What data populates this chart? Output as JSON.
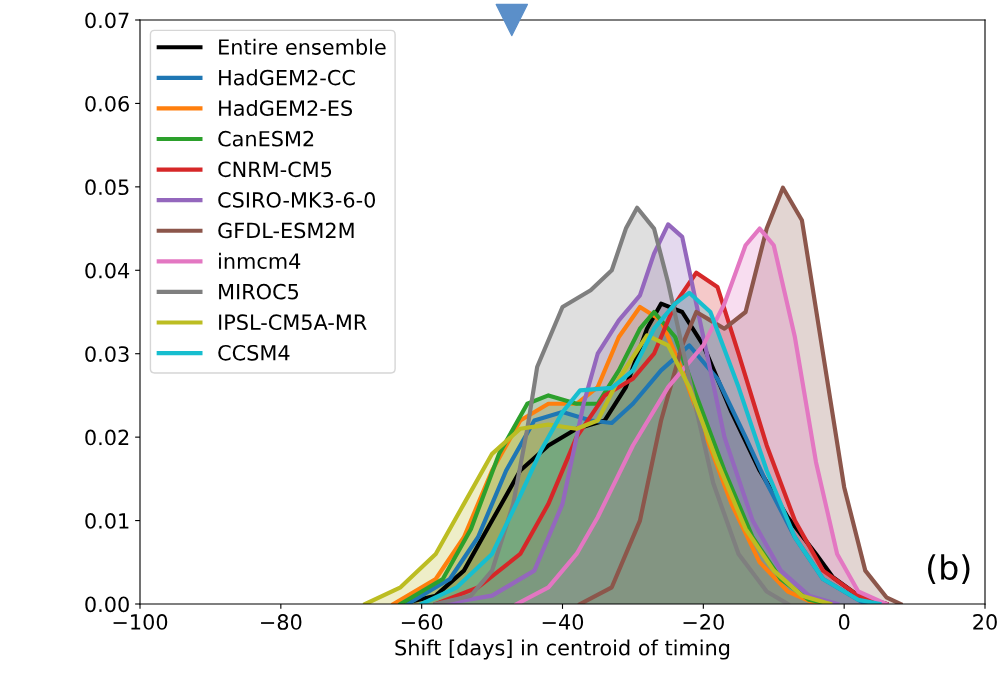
{
  "chart_data": {
    "type": "area",
    "xlabel": "Shift [days] in centroid of timing",
    "annotations": [
      "(b)"
    ],
    "xlim": [
      -100,
      20
    ],
    "xticks": [
      {
        "value": -100,
        "label": "−100"
      },
      {
        "value": -80,
        "label": "−80"
      },
      {
        "value": -60,
        "label": "−60"
      },
      {
        "value": -40,
        "label": "−40"
      },
      {
        "value": -20,
        "label": "−20"
      },
      0,
      20
    ],
    "ylim": [
      0,
      0.07
    ],
    "yticks": [
      {
        "value": 0,
        "label": "0.00"
      },
      {
        "value": 0.01,
        "label": "0.01"
      },
      {
        "value": 0.02,
        "label": "0.02"
      },
      {
        "value": 0.03,
        "label": "0.03"
      },
      {
        "value": 0.04,
        "label": "0.04"
      },
      {
        "value": 0.05,
        "label": "0.05"
      },
      {
        "value": 0.06,
        "label": "0.06"
      },
      {
        "value": 0.07,
        "label": "0.07"
      }
    ],
    "grid": false,
    "legend": "top left",
    "line_style": "solid",
    "marker": "none",
    "series": [
      {
        "name": "Entire ensemble",
        "color": "#000000",
        "x": [
          -63,
          -58,
          -54,
          -50,
          -46,
          -42,
          -38,
          -34,
          -31,
          -28,
          -26,
          -23,
          -20,
          -16,
          -12,
          -8,
          -4,
          -1.6,
          2,
          6
        ],
        "values": [
          0,
          0.001,
          0.004,
          0.01,
          0.016,
          0.019,
          0.021,
          0.022,
          0.026,
          0.033,
          0.036,
          0.035,
          0.031,
          0.023,
          0.016,
          0.0104,
          0.006,
          0.0032,
          0.001,
          0
        ]
      },
      {
        "name": "HadGEM2-CC",
        "color": "#1f77b4",
        "x": [
          -62,
          -56,
          -52,
          -48,
          -44,
          -40,
          -36,
          -33,
          -30,
          -26,
          -22,
          -18,
          -14,
          -11,
          -7,
          -3,
          3
        ],
        "values": [
          0,
          0.003,
          0.008,
          0.016,
          0.022,
          0.023,
          0.022,
          0.0217,
          0.024,
          0.028,
          0.031,
          0.027,
          0.02,
          0.0145,
          0.008,
          0.003,
          0
        ]
      },
      {
        "name": "HadGEM2-ES",
        "color": "#ff7f0e",
        "x": [
          -64,
          -58,
          -54,
          -50,
          -46,
          -42,
          -38,
          -35,
          -32,
          -29,
          -26,
          -23,
          -20,
          -16,
          -12,
          -8,
          -4
        ],
        "values": [
          0,
          0.003,
          0.008,
          0.016,
          0.022,
          0.024,
          0.024,
          0.026,
          0.032,
          0.0356,
          0.034,
          0.028,
          0.021,
          0.012,
          0.005,
          0.0015,
          0
        ]
      },
      {
        "name": "CanESM2",
        "color": "#2ca02c",
        "x": [
          -63,
          -57,
          -53,
          -49,
          -45,
          -42,
          -38,
          -35,
          -32,
          -29,
          -27,
          -24,
          -21,
          -17,
          -13,
          -9,
          -5,
          -2
        ],
        "values": [
          0,
          0.003,
          0.009,
          0.018,
          0.024,
          0.025,
          0.024,
          0.024,
          0.028,
          0.033,
          0.035,
          0.032,
          0.025,
          0.016,
          0.008,
          0.003,
          0.0005,
          0
        ]
      },
      {
        "name": "CNRM-CM5",
        "color": "#d62728",
        "x": [
          -58,
          -52,
          -46,
          -42,
          -38,
          -34,
          -30,
          -27,
          -24,
          -21,
          -18,
          -15,
          -11,
          -7,
          -3,
          2,
          6
        ],
        "values": [
          0,
          0.002,
          0.006,
          0.012,
          0.02,
          0.025,
          0.027,
          0.03,
          0.036,
          0.0397,
          0.038,
          0.03,
          0.019,
          0.01,
          0.004,
          0.001,
          0
        ]
      },
      {
        "name": "CSIRO-MK3-6-0",
        "color": "#9467bd",
        "x": [
          -57,
          -50,
          -44,
          -40,
          -37,
          -35,
          -32,
          -29,
          -27,
          -25,
          -23,
          -20,
          -17,
          -13,
          -9,
          -5,
          -1
        ],
        "values": [
          0,
          0.001,
          0.004,
          0.012,
          0.024,
          0.03,
          0.034,
          0.037,
          0.042,
          0.0455,
          0.044,
          0.032,
          0.02,
          0.01,
          0.004,
          0.001,
          0
        ]
      },
      {
        "name": "GFDL-ESM2M",
        "color": "#8c564b",
        "x": [
          -37.5,
          -33,
          -29,
          -26,
          -23,
          -21,
          -19,
          -17,
          -14,
          -11,
          -8.7,
          -6,
          -3,
          0,
          3,
          6,
          8
        ],
        "values": [
          0,
          0.002,
          0.01,
          0.022,
          0.031,
          0.035,
          0.034,
          0.033,
          0.035,
          0.045,
          0.0499,
          0.046,
          0.03,
          0.014,
          0.004,
          0.0008,
          0
        ]
      },
      {
        "name": "inmcm4",
        "color": "#e377c2",
        "x": [
          -46.5,
          -42,
          -38,
          -35,
          -30,
          -25,
          -20,
          -17,
          -14,
          -12,
          -10,
          -7,
          -4,
          -1,
          2,
          6
        ],
        "values": [
          0,
          0.002,
          0.006,
          0.0104,
          0.019,
          0.026,
          0.031,
          0.036,
          0.043,
          0.045,
          0.043,
          0.032,
          0.017,
          0.006,
          0.0015,
          0
        ]
      },
      {
        "name": "MIROC5",
        "color": "#7f7f7f",
        "x": [
          -58,
          -53,
          -50,
          -47,
          -45,
          -43.6,
          -40,
          -36,
          -33,
          -31,
          -29.4,
          -27,
          -25,
          -22,
          -18.6,
          -15,
          -11,
          -8
        ],
        "values": [
          0,
          0.001,
          0.004,
          0.012,
          0.021,
          0.0284,
          0.0356,
          0.0376,
          0.04,
          0.045,
          0.0475,
          0.045,
          0.0385,
          0.027,
          0.0145,
          0.006,
          0.0015,
          0
        ]
      },
      {
        "name": "IPSL-CM5A-MR",
        "color": "#bcbd22",
        "x": [
          -68,
          -63,
          -58,
          -54,
          -50,
          -46,
          -42,
          -38,
          -35,
          -32,
          -28,
          -25,
          -22,
          -18,
          -14,
          -10,
          -6,
          -2
        ],
        "values": [
          0,
          0.002,
          0.006,
          0.012,
          0.018,
          0.021,
          0.0215,
          0.021,
          0.022,
          0.027,
          0.0322,
          0.031,
          0.026,
          0.017,
          0.009,
          0.004,
          0.001,
          0
        ]
      },
      {
        "name": "CCSM4",
        "color": "#17becf",
        "x": [
          -60,
          -55,
          -50,
          -46,
          -43,
          -40,
          -37.5,
          -33,
          -30,
          -27,
          -24,
          -22,
          -19,
          -15,
          -11,
          -7,
          -3,
          2,
          5
        ],
        "values": [
          0,
          0.002,
          0.006,
          0.013,
          0.0185,
          0.023,
          0.0256,
          0.0259,
          0.028,
          0.033,
          0.036,
          0.0373,
          0.035,
          0.026,
          0.016,
          0.008,
          0.003,
          0.0005,
          0
        ]
      },
      {
        "type": "scatter",
        "marker": "triangle",
        "color": "#5b8fc9",
        "x": [
          -47.2
        ],
        "values": [
          0.07
        ]
      }
    ]
  }
}
